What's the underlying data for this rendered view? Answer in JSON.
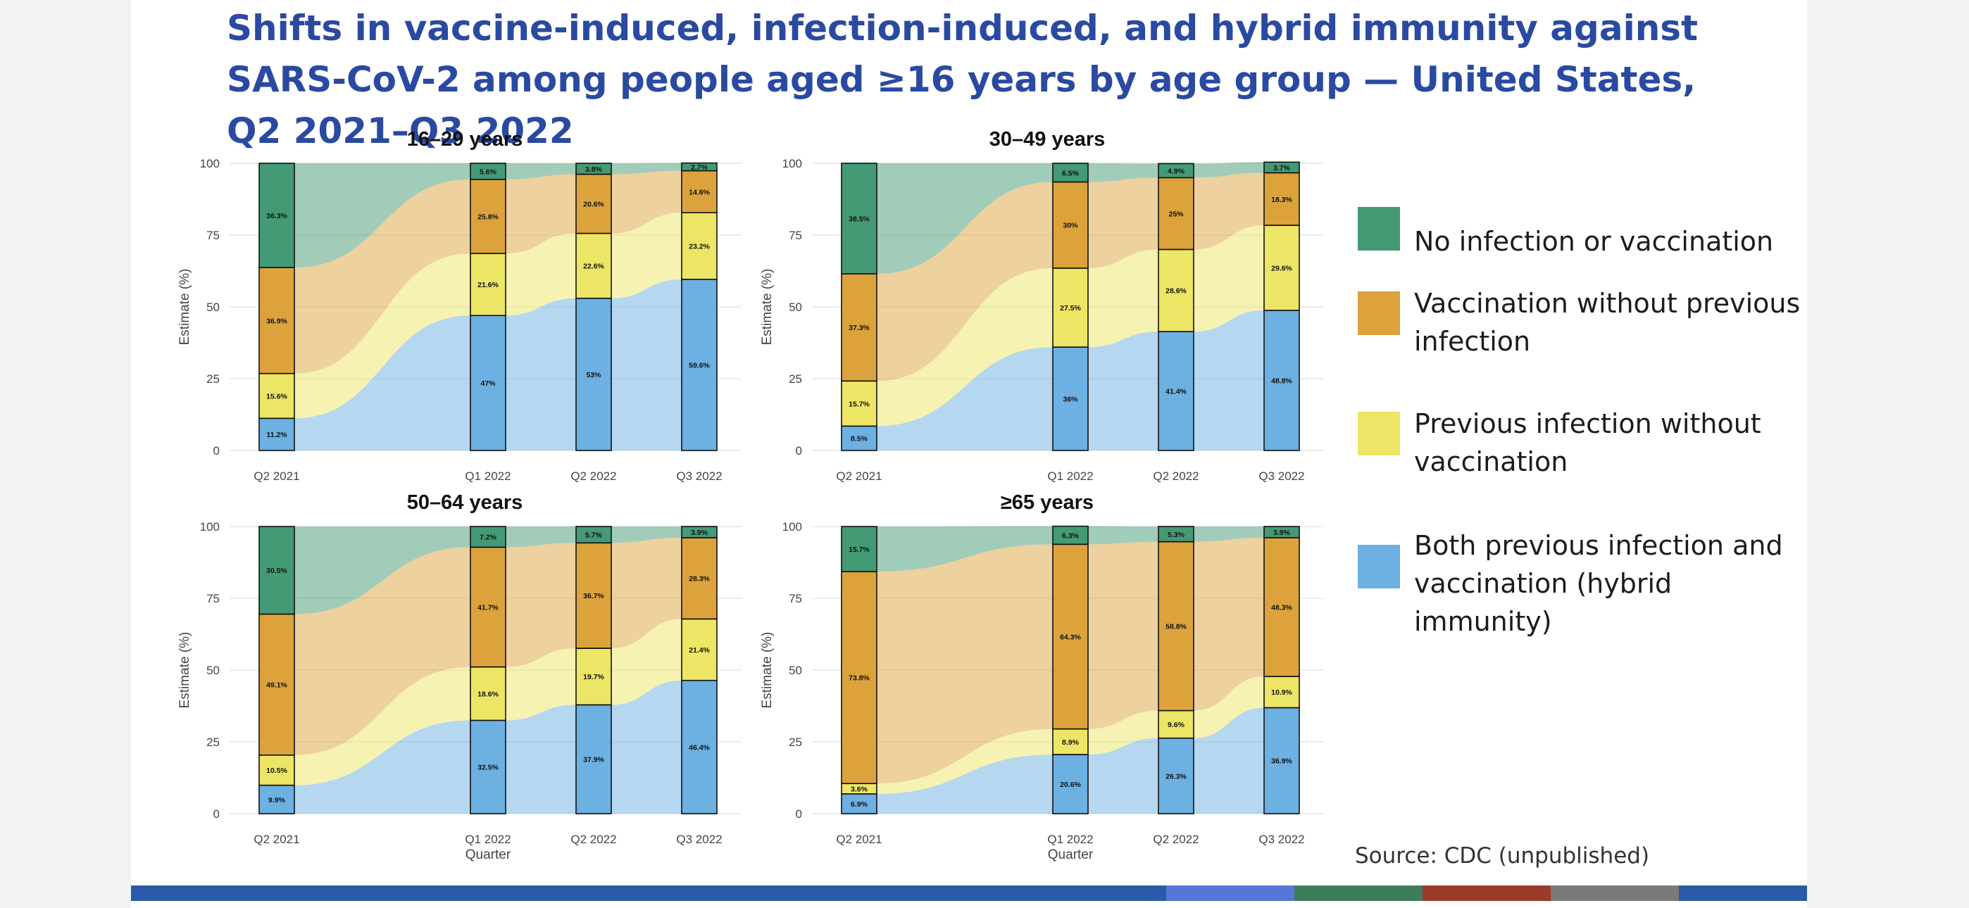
{
  "title": "Shifts in vaccine-induced, infection-induced, and hybrid immunity against SARS-CoV-2 among people aged ≥16 years by age group — United States, Q2 2021–Q3 2022",
  "colors": {
    "none": "#449a74",
    "vaccination": "#dca33d",
    "infection": "#ede565",
    "hybrid": "#6db0e2"
  },
  "legend": [
    {
      "key": "none",
      "label": "No infection or vaccination"
    },
    {
      "key": "vaccination",
      "label": "Vaccination without previous infection"
    },
    {
      "key": "infection",
      "label": "Previous infection without vaccination"
    },
    {
      "key": "hybrid",
      "label": "Both previous infection and vaccination (hybrid immunity)"
    }
  ],
  "axis": {
    "ylabel": "Estimate (%)",
    "xlabel": "Quarter",
    "yticks": [
      "0",
      "25",
      "50",
      "75",
      "100"
    ],
    "quarters": [
      "Q2 2021",
      "Q1 2022",
      "Q2 2022",
      "Q3 2022"
    ]
  },
  "chart_data": [
    {
      "type": "bar",
      "title": "16–29 years",
      "categories": [
        "Q2 2021",
        "Q1 2022",
        "Q2 2022",
        "Q3 2022"
      ],
      "ylim": [
        0,
        100
      ],
      "series": [
        {
          "name": "Both previous infection and vaccination (hybrid immunity)",
          "key": "hybrid",
          "values": [
            11.2,
            47,
            53,
            59.6
          ],
          "labels": [
            "11.2%",
            "47%",
            "53%",
            "59.6%"
          ]
        },
        {
          "name": "Previous infection without vaccination",
          "key": "infection",
          "values": [
            15.6,
            21.6,
            22.6,
            23.2
          ],
          "labels": [
            "15.6%",
            "21.6%",
            "22.6%",
            "23.2%"
          ]
        },
        {
          "name": "Vaccination without previous infection",
          "key": "vaccination",
          "values": [
            36.9,
            25.8,
            20.6,
            14.6
          ],
          "labels": [
            "36.9%",
            "25.8%",
            "20.6%",
            "14.6%"
          ]
        },
        {
          "name": "No infection or vaccination",
          "key": "none",
          "values": [
            36.3,
            5.6,
            3.8,
            2.7
          ],
          "labels": [
            "36.3%",
            "5.6%",
            "3.8%",
            "2.7%"
          ]
        }
      ]
    },
    {
      "type": "bar",
      "title": "30–49 years",
      "categories": [
        "Q2 2021",
        "Q1 2022",
        "Q2 2022",
        "Q3 2022"
      ],
      "ylim": [
        0,
        100
      ],
      "series": [
        {
          "name": "Both previous infection and vaccination (hybrid immunity)",
          "key": "hybrid",
          "values": [
            8.5,
            36,
            41.4,
            48.8
          ],
          "labels": [
            "8.5%",
            "36%",
            "41.4%",
            "48.8%"
          ]
        },
        {
          "name": "Previous infection without vaccination",
          "key": "infection",
          "values": [
            15.7,
            27.5,
            28.6,
            29.6
          ],
          "labels": [
            "15.7%",
            "27.5%",
            "28.6%",
            "29.6%"
          ]
        },
        {
          "name": "Vaccination without previous infection",
          "key": "vaccination",
          "values": [
            37.3,
            30,
            25,
            18.3
          ],
          "labels": [
            "37.3%",
            "30%",
            "25%",
            "18.3%"
          ]
        },
        {
          "name": "No infection or vaccination",
          "key": "none",
          "values": [
            38.5,
            6.5,
            4.9,
            3.7
          ],
          "labels": [
            "38.5%",
            "6.5%",
            "4.9%",
            "3.7%"
          ]
        }
      ]
    },
    {
      "type": "bar",
      "title": "50–64 years",
      "categories": [
        "Q2 2021",
        "Q1 2022",
        "Q2 2022",
        "Q3 2022"
      ],
      "xlabel": "Quarter",
      "ylim": [
        0,
        100
      ],
      "series": [
        {
          "name": "Both previous infection and vaccination (hybrid immunity)",
          "key": "hybrid",
          "values": [
            9.9,
            32.5,
            37.9,
            46.4
          ],
          "labels": [
            "9.9%",
            "32.5%",
            "37.9%",
            "46.4%"
          ]
        },
        {
          "name": "Previous infection without vaccination",
          "key": "infection",
          "values": [
            10.5,
            18.6,
            19.7,
            21.4
          ],
          "labels": [
            "10.5%",
            "18.6%",
            "19.7%",
            "21.4%"
          ]
        },
        {
          "name": "Vaccination without previous infection",
          "key": "vaccination",
          "values": [
            49.1,
            41.7,
            36.7,
            28.3
          ],
          "labels": [
            "49.1%",
            "41.7%",
            "36.7%",
            "28.3%"
          ]
        },
        {
          "name": "No infection or vaccination",
          "key": "none",
          "values": [
            30.5,
            7.2,
            5.7,
            3.9
          ],
          "labels": [
            "30.5%",
            "7.2%",
            "5.7%",
            "3.9%"
          ]
        }
      ]
    },
    {
      "type": "bar",
      "title": "≥65 years",
      "categories": [
        "Q2 2021",
        "Q1 2022",
        "Q2 2022",
        "Q3 2022"
      ],
      "xlabel": "Quarter",
      "ylim": [
        0,
        100
      ],
      "series": [
        {
          "name": "Both previous infection and vaccination (hybrid immunity)",
          "key": "hybrid",
          "values": [
            6.9,
            20.6,
            26.3,
            36.9
          ],
          "labels": [
            "6.9%",
            "20.6%",
            "26.3%",
            "36.9%"
          ]
        },
        {
          "name": "Previous infection without vaccination",
          "key": "infection",
          "values": [
            3.6,
            8.9,
            9.6,
            10.9
          ],
          "labels": [
            "3.6%",
            "8.9%",
            "9.6%",
            "10.9%"
          ]
        },
        {
          "name": "Vaccination without previous infection",
          "key": "vaccination",
          "values": [
            73.8,
            64.3,
            58.8,
            48.3
          ],
          "labels": [
            "73.8%",
            "64.3%",
            "58.8%",
            "48.3%"
          ]
        },
        {
          "name": "No infection or vaccination",
          "key": "none",
          "values": [
            15.7,
            6.3,
            5.3,
            3.9
          ],
          "labels": [
            "15.7%",
            "6.3%",
            "5.3%",
            "3.9%"
          ]
        }
      ]
    }
  ],
  "source": "Source: CDC (unpublished)",
  "footer_colors": [
    "#2a5ba8",
    "#5875d8",
    "#3e7d5a",
    "#9b3b2a",
    "#7a7a7a",
    "#2a5ba8"
  ]
}
